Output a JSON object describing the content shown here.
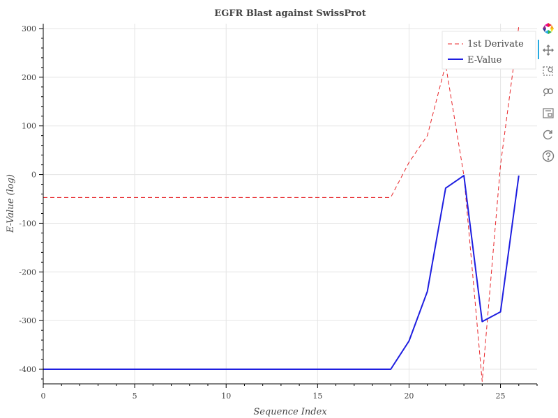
{
  "chart_data": {
    "type": "line",
    "title": "EGFR Blast against SwissProt",
    "xlabel": "Sequence Index",
    "ylabel": "E-Value (log)",
    "xlim": [
      0,
      27
    ],
    "ylim": [
      -430,
      310
    ],
    "x_ticks": [
      0,
      5,
      10,
      15,
      20,
      25
    ],
    "x_tick_labels": [
      "0",
      "5",
      "10",
      "15",
      "20",
      "25"
    ],
    "y_ticks": [
      300,
      200,
      100,
      0,
      -100,
      -200,
      -300,
      -400
    ],
    "y_tick_labels": [
      "300",
      "200",
      "100",
      "0",
      "-100",
      "-200",
      "-300",
      "-400"
    ],
    "grid": true,
    "legend_position": "top-right",
    "x": [
      0,
      1,
      2,
      3,
      4,
      5,
      6,
      7,
      8,
      9,
      10,
      11,
      12,
      13,
      14,
      15,
      16,
      17,
      18,
      19,
      20,
      21,
      22,
      23,
      24,
      25,
      26
    ],
    "series": [
      {
        "name": "1st Derivate",
        "style": "dashed",
        "color": "#e8262a",
        "values": [
          -47,
          -47,
          -47,
          -47,
          -47,
          -47,
          -47,
          -47,
          -47,
          -47,
          -47,
          -47,
          -47,
          -47,
          -47,
          -47,
          -47,
          -47,
          -47,
          -47,
          25,
          80,
          226,
          -2,
          -425,
          20,
          305
        ]
      },
      {
        "name": "E-Value",
        "style": "solid",
        "color": "#1e1ee0",
        "values": [
          -400,
          -400,
          -400,
          -400,
          -400,
          -400,
          -400,
          -400,
          -400,
          -400,
          -400,
          -400,
          -400,
          -400,
          -400,
          -400,
          -400,
          -400,
          -400,
          -400,
          -342,
          -240,
          -28,
          -2,
          -302,
          -282,
          -2
        ]
      }
    ]
  },
  "toolbar": {
    "tools": [
      "bokeh-logo-icon",
      "pan-icon",
      "box-zoom-icon",
      "wheel-zoom-icon",
      "lasso-select-icon",
      "save-icon",
      "reset-icon",
      "help-icon"
    ]
  }
}
